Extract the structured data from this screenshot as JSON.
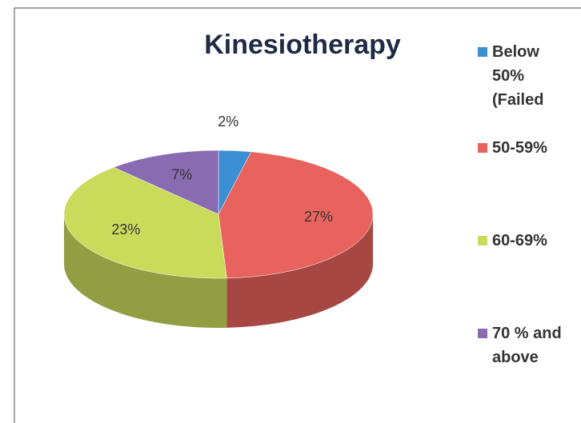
{
  "chart_data": {
    "type": "pie",
    "title": "Kinesiotherapy",
    "categories": [
      "Below 50% (Failed",
      "50-59%",
      "60-69%",
      "70 % and above"
    ],
    "values": [
      2,
      27,
      23,
      7
    ],
    "value_labels": [
      "2%",
      "27%",
      "23%",
      "7%"
    ],
    "colors": [
      "#3b8fd2",
      "#e8625e",
      "#cadb5b",
      "#8a6bb2"
    ],
    "legend": "right"
  }
}
